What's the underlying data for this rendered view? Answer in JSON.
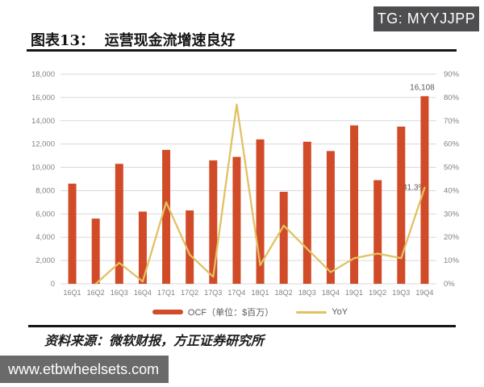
{
  "badge": {
    "label": "TG: MYYJJPP"
  },
  "title": "图表13：  运营现金流增速良好",
  "legend": {
    "ocf_label": "OCF（单位：$百万）",
    "yoy_label": "YoY"
  },
  "source_note": "资料来源：微软财报，方正证券研究所",
  "watermark": "www.etbwheelsets.com",
  "colors": {
    "bar": "#d14b28",
    "line": "#e2c063",
    "grid": "#d9d9d9",
    "axis_text": "#818181",
    "annotation": "#595959",
    "badge_bg": "#4e4e50",
    "watermark_bg": "#6a6a6a"
  },
  "chart_data": {
    "type": "bar+line combo",
    "title": "运营现金流增速良好",
    "categories": [
      "16Q1",
      "16Q2",
      "16Q3",
      "16Q4",
      "17Q1",
      "17Q2",
      "17Q3",
      "17Q4",
      "18Q1",
      "18Q2",
      "18Q3",
      "18Q4",
      "19Q1",
      "19Q2",
      "19Q3",
      "19Q4"
    ],
    "series": [
      {
        "name": "OCF（单位：$百万）",
        "type": "bar",
        "axis": "left",
        "values": [
          8600,
          5600,
          10300,
          6200,
          11500,
          6300,
          10600,
          10900,
          12400,
          7900,
          12200,
          11400,
          13600,
          8900,
          13500,
          16108
        ]
      },
      {
        "name": "YoY",
        "type": "line",
        "axis": "right",
        "unit": "%",
        "values": [
          null,
          0,
          9,
          1,
          35,
          12.5,
          3,
          77,
          8,
          25,
          15,
          5,
          11,
          13,
          11,
          41.3
        ]
      }
    ],
    "left_axis": {
      "min": 0,
      "max": 18000,
      "step": 2000,
      "tick_labels": [
        "0",
        "2,000",
        "4,000",
        "6,000",
        "8,000",
        "10,000",
        "12,000",
        "14,000",
        "16,000",
        "18,000"
      ]
    },
    "right_axis": {
      "min": 0,
      "max": 90,
      "step": 10,
      "tick_labels": [
        "0%",
        "10%",
        "20%",
        "30%",
        "40%",
        "50%",
        "60%",
        "70%",
        "80%",
        "90%"
      ]
    },
    "grid": true,
    "legend_position": "bottom",
    "annotations": [
      {
        "text": "16,108",
        "target": "19Q4 bar top"
      },
      {
        "text": "41.3%",
        "target": "19Q4 YoY point"
      }
    ]
  }
}
